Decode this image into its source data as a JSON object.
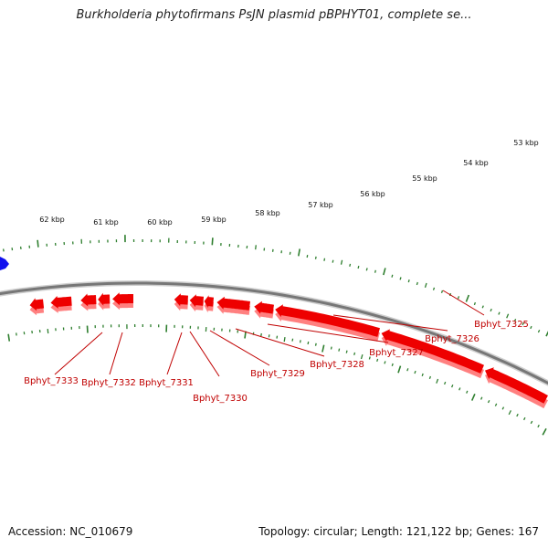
{
  "title": "Burkholderia phytofirmans PsJN plasmid pBPHYT01, complete se...",
  "footer": {
    "accession": "Accession: NC_010679",
    "summary": "Topology: circular; Length: 121,122 bp; Genes: 167"
  },
  "colors": {
    "gene_fill": "#ee0000",
    "gene_shadow": "#ff8080",
    "gene_blue": "#1010ee",
    "backbone_dark": "#777777",
    "backbone_light": "#cfcfcf",
    "tick": "#2f7f2f",
    "label": "#c00000"
  },
  "kbp_markers": [
    "53 kbp",
    "54 kbp",
    "55 kbp",
    "56 kbp",
    "57 kbp",
    "58 kbp",
    "59 kbp",
    "60 kbp",
    "61 kbp",
    "62 kbp"
  ],
  "gene_labels": [
    "Bphyt_7325",
    "Bphyt_7326",
    "Bphyt_7327",
    "Bphyt_7328",
    "Bphyt_7329",
    "Bphyt_7330",
    "Bphyt_7331",
    "Bphyt_7332",
    "Bphyt_7333"
  ]
}
